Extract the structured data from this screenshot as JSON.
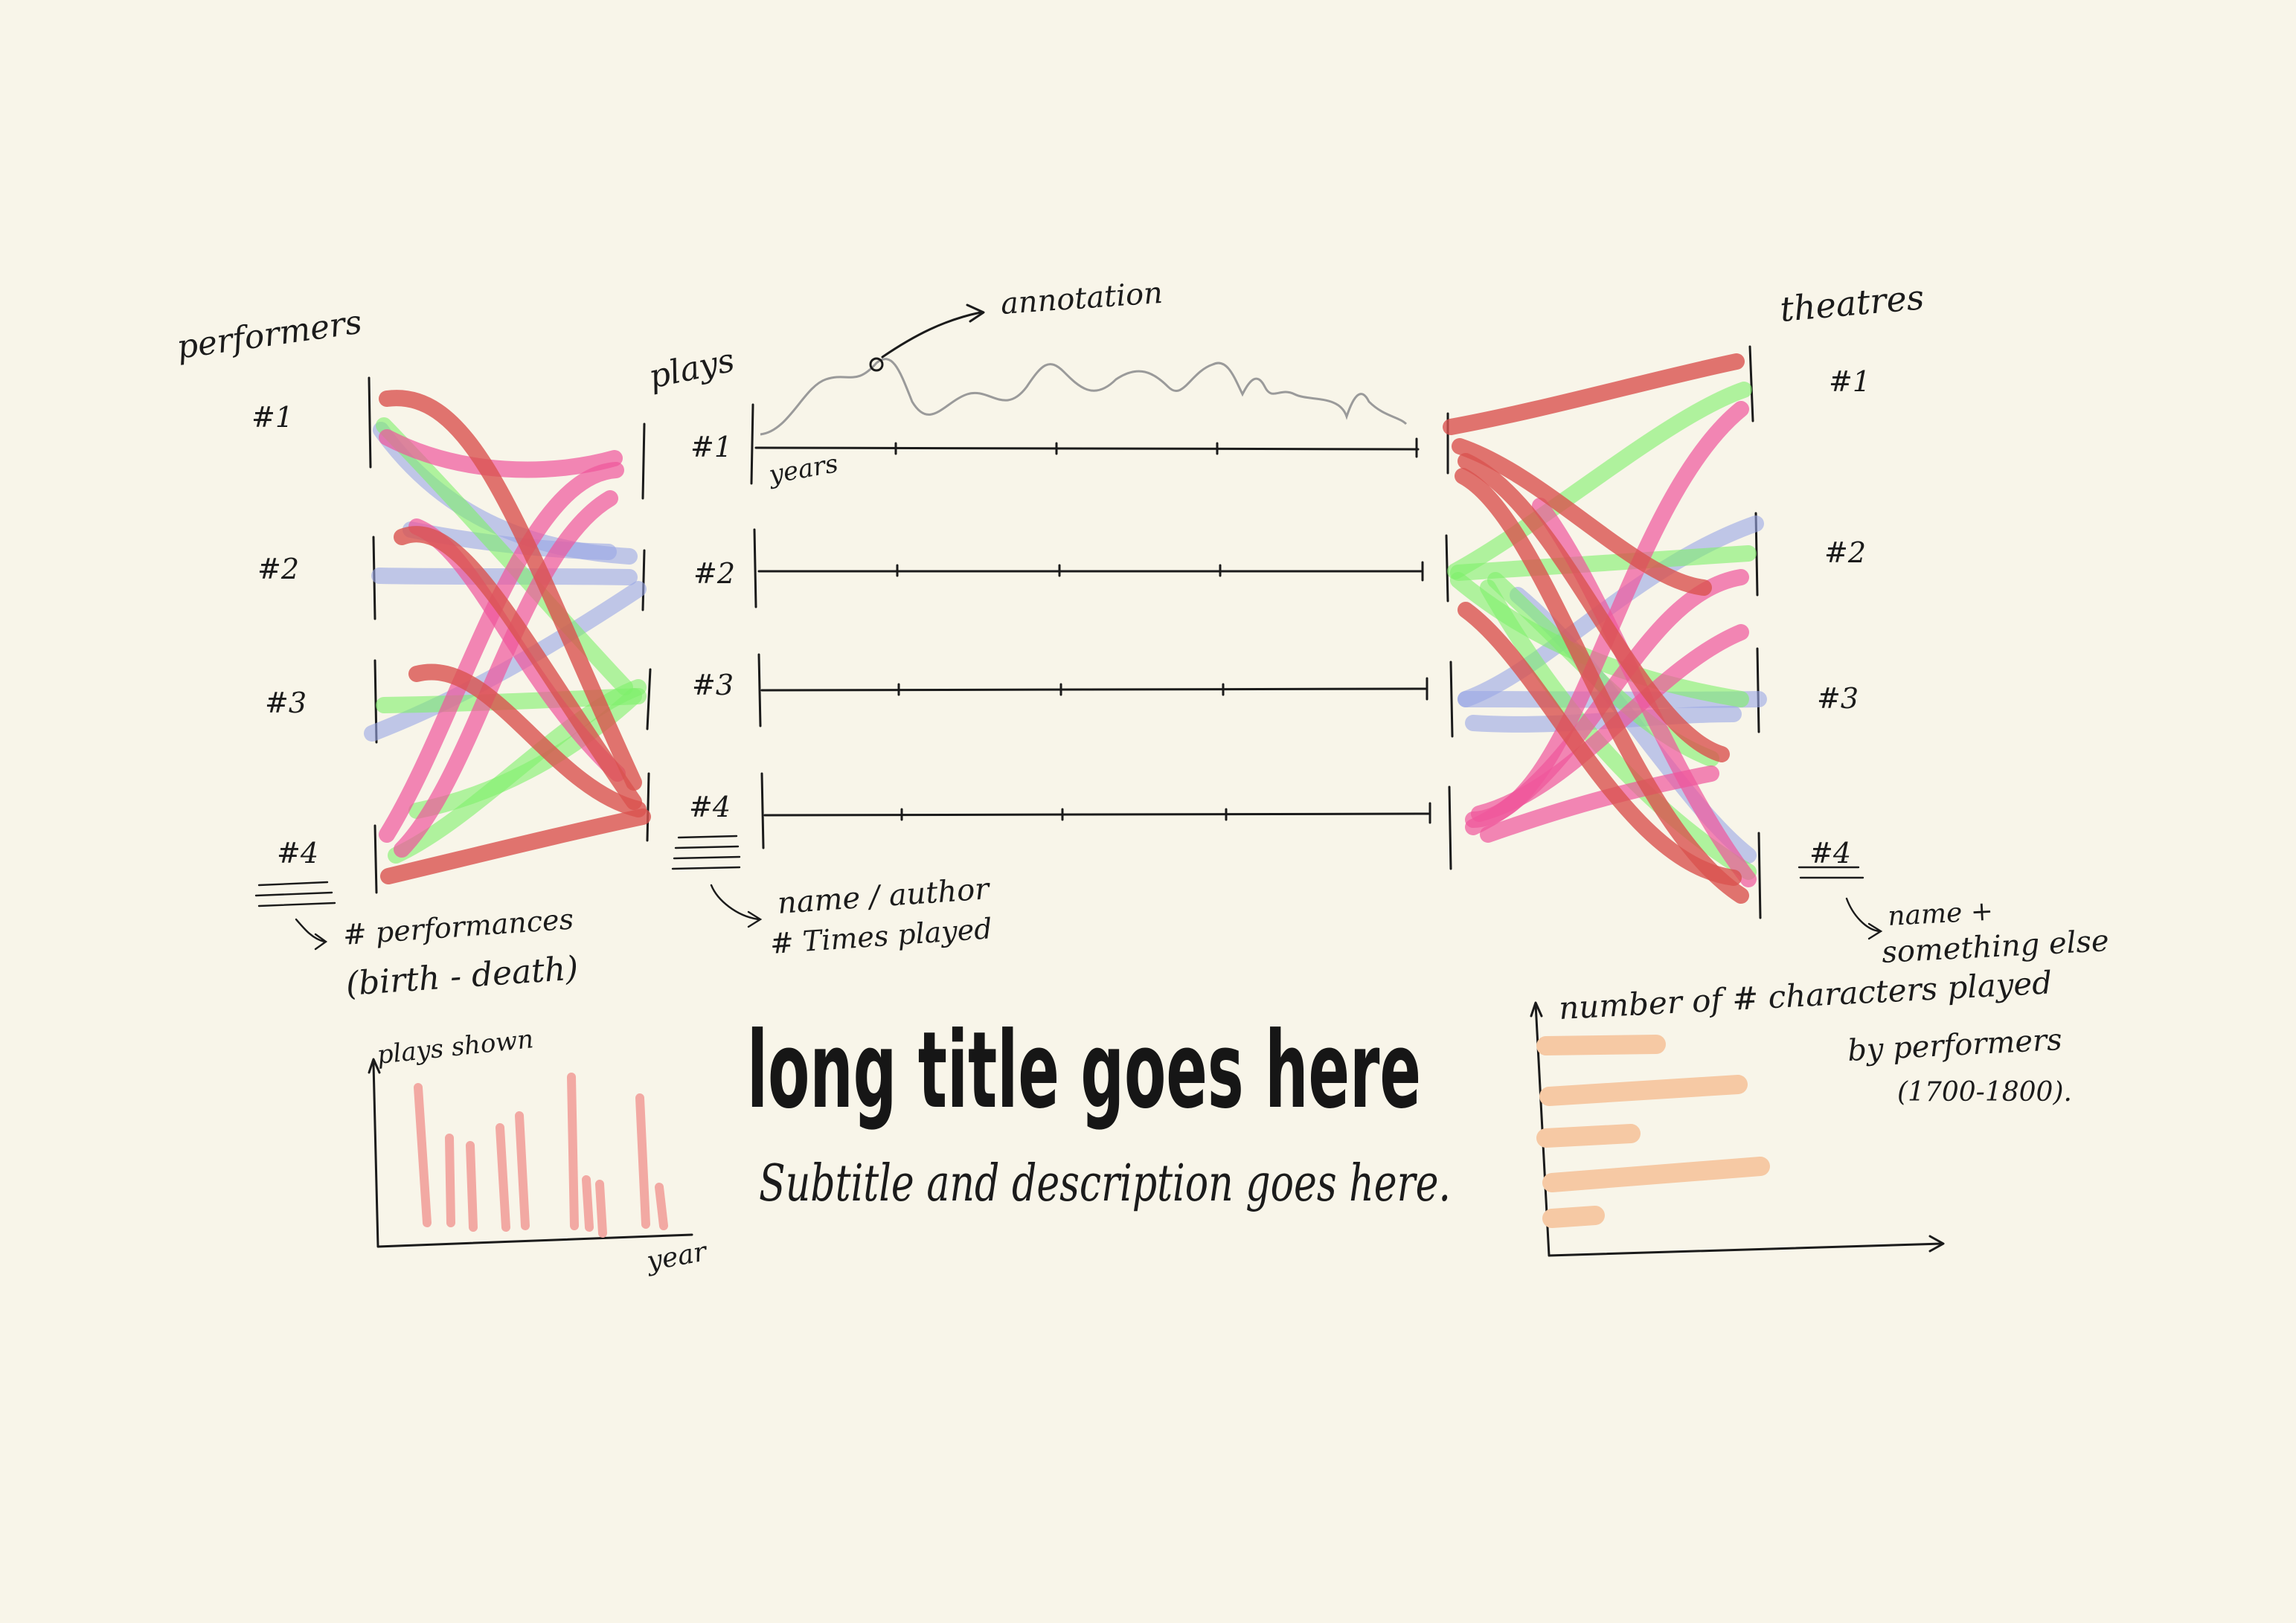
{
  "labels": {
    "performers_heading": "performers",
    "plays_heading": "plays",
    "theatres_heading": "theatres",
    "annotation": "annotation",
    "years_axis": "years",
    "performers_note_line1": "# performances",
    "performers_note_line2": "(birth - death)",
    "plays_note_line1": "name / author",
    "plays_note_line2": "# Times played",
    "theatres_note_line1": "name +",
    "theatres_note_line2": "something else"
  },
  "performers": [
    "#1",
    "#2",
    "#3",
    "#4"
  ],
  "plays": [
    "#1",
    "#2",
    "#3",
    "#4"
  ],
  "theatres": [
    "#1",
    "#2",
    "#3",
    "#4"
  ],
  "title": {
    "main": "long title goes here",
    "subtitle": "Subtitle and description goes here."
  },
  "mini_chart_left": {
    "ylabel": "plays shown",
    "xlabel": "year"
  },
  "mini_chart_right": {
    "title_line1": "number of # characters played",
    "title_line2": "by performers",
    "title_line3": "(1700-1800)."
  },
  "colors": {
    "background": "#f8f5e9",
    "ink": "#1b1b1b",
    "red": "#d9534f",
    "pink": "#f0569b",
    "green": "#7ef06a",
    "blue": "#9aa6e6",
    "bars_left": "#f2a9a3",
    "bars_right": "#f6c9a4",
    "sparkline": "#9a9a9a"
  }
}
